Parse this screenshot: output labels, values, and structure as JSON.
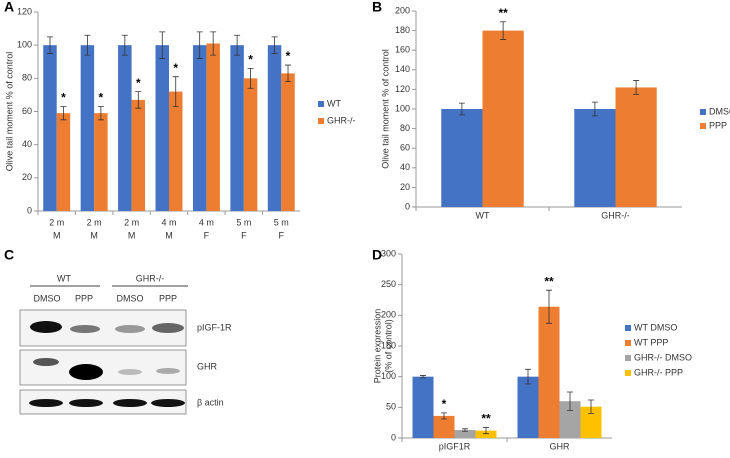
{
  "chart_data": [
    {
      "type": "bar",
      "panel_label": "A",
      "ylabel": "Olive tail moment % of control",
      "categories": [
        [
          "2 m",
          "M"
        ],
        [
          "2 m",
          "M"
        ],
        [
          "2 m",
          "M"
        ],
        [
          "4 m",
          "M"
        ],
        [
          "4 m",
          "F"
        ],
        [
          "5 m",
          "F"
        ],
        [
          "5 m",
          "F"
        ]
      ],
      "series": [
        {
          "name": "WT",
          "color": "#4472c4",
          "values": [
            100,
            100,
            100,
            100,
            100,
            100,
            100
          ],
          "errors": [
            5,
            6,
            6,
            8,
            8,
            6,
            5
          ],
          "annotations": [
            null,
            null,
            null,
            null,
            null,
            null,
            null
          ]
        },
        {
          "name": "GHR-/-",
          "color": "#ed7d31",
          "values": [
            59,
            59,
            67,
            72,
            101,
            80,
            83
          ],
          "errors": [
            4,
            4,
            5,
            9,
            7,
            6,
            5
          ],
          "annotations": [
            "*",
            "*",
            "*",
            "*",
            null,
            "*",
            "*"
          ]
        }
      ],
      "ylim": [
        0,
        120
      ],
      "yticks": [
        0,
        20,
        40,
        60,
        80,
        100,
        120
      ],
      "legend": "right"
    },
    {
      "type": "bar",
      "panel_label": "B",
      "ylabel": "Olive tail moment % of control",
      "categories": [
        "WT",
        "GHR-/-"
      ],
      "series": [
        {
          "name": "DMSO",
          "color": "#4472c4",
          "values": [
            100,
            100
          ],
          "errors": [
            6,
            7
          ],
          "annotations": [
            null,
            null
          ]
        },
        {
          "name": "PPP",
          "color": "#ed7d31",
          "values": [
            180,
            122
          ],
          "errors": [
            9,
            7
          ],
          "annotations": [
            "**",
            null
          ]
        }
      ],
      "ylim": [
        0,
        200
      ],
      "yticks": [
        0,
        20,
        40,
        60,
        80,
        100,
        120,
        140,
        160,
        180,
        200
      ],
      "legend": "right"
    },
    {
      "type": "bar",
      "panel_label": "D",
      "ylabel": [
        "Protein expression",
        "(% of control)"
      ],
      "categories": [
        "pIGF1R",
        "GHR"
      ],
      "series": [
        {
          "name": "WT DMSO",
          "color": "#4472c4",
          "values": [
            100,
            100
          ],
          "errors": [
            2,
            12
          ],
          "annotations": [
            null,
            null
          ]
        },
        {
          "name": "WT PPP",
          "color": "#ed7d31",
          "values": [
            36,
            214
          ],
          "errors": [
            5,
            27
          ],
          "annotations": [
            "*",
            "**"
          ]
        },
        {
          "name": "GHR-/- DMSO",
          "color": "#a5a5a5",
          "values": [
            13,
            60
          ],
          "errors": [
            2,
            15
          ],
          "annotations": [
            null,
            null
          ]
        },
        {
          "name": "GHR-/- PPP",
          "color": "#ffc000",
          "values": [
            12,
            51
          ],
          "errors": [
            5,
            11
          ],
          "annotations": [
            "**",
            null
          ]
        }
      ],
      "ylim": [
        0,
        300
      ],
      "yticks": [
        0,
        50,
        100,
        150,
        200,
        250,
        300
      ],
      "legend": "right"
    }
  ],
  "blot": {
    "panel_label": "C",
    "groups": [
      "WT",
      "GHR-/-"
    ],
    "lanes": [
      "DMSO",
      "PPP",
      "DMSO",
      "PPP"
    ],
    "rows": [
      "pIGF-1R",
      "GHR",
      "β actin"
    ]
  }
}
